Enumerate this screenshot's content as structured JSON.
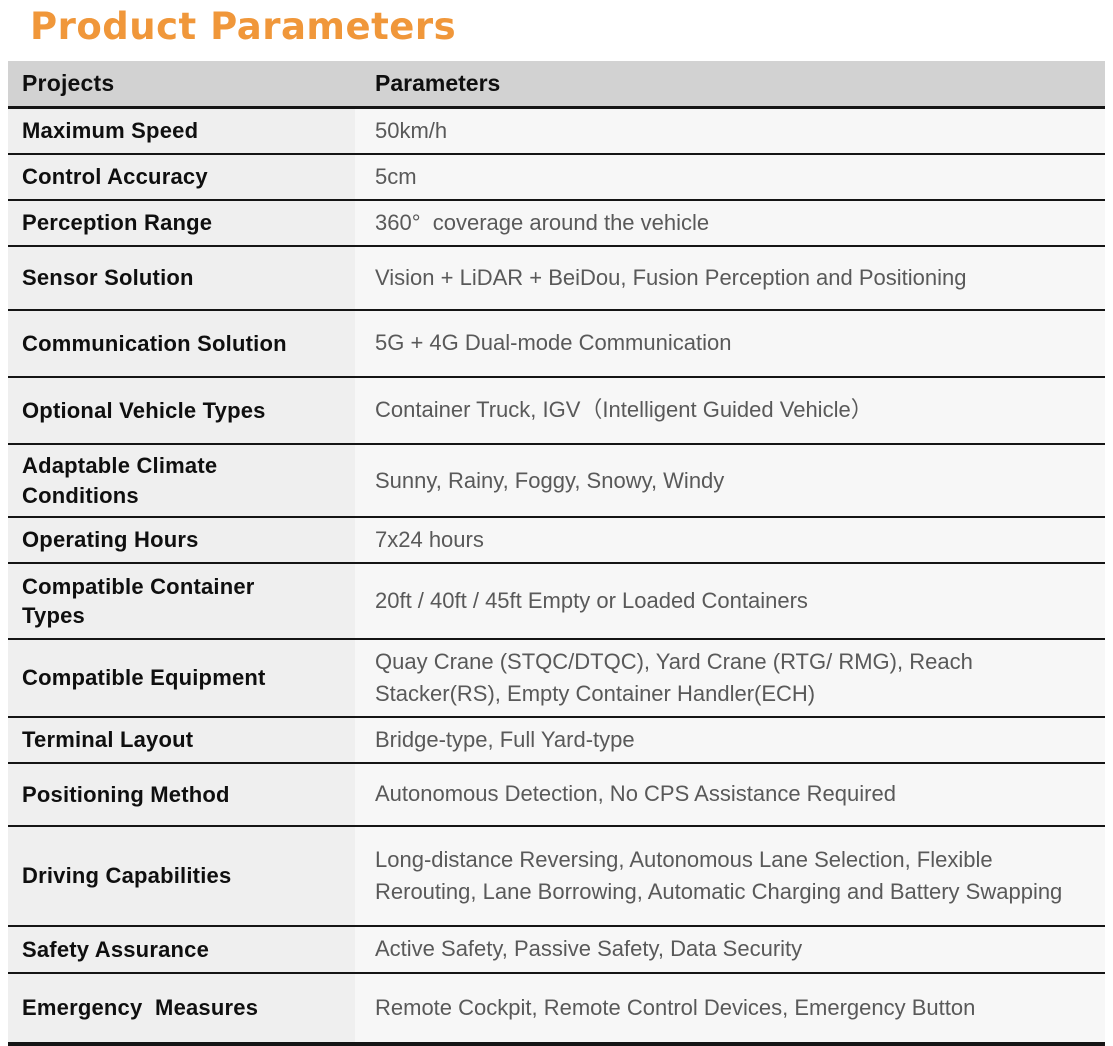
{
  "title": "Product Parameters",
  "table": {
    "headers": {
      "col1": "Projects",
      "col2": "Parameters"
    },
    "rows": [
      {
        "label": "Maximum Speed",
        "value": "50km/h"
      },
      {
        "label": "Control Accuracy",
        "value": "5cm"
      },
      {
        "label": "Perception Range",
        "value": "360°  coverage around the vehicle"
      },
      {
        "label": "Sensor Solution",
        "value": "Vision + LiDAR + BeiDou, Fusion Perception and Positioning"
      },
      {
        "label": "Communication Solution",
        "value": "5G + 4G Dual-mode Communication"
      },
      {
        "label": "Optional Vehicle Types",
        "value": "Container Truck, IGV（Intelligent Guided Vehicle）"
      },
      {
        "label": "Adaptable Climate Conditions",
        "value": "Sunny, Rainy, Foggy, Snowy, Windy"
      },
      {
        "label": "Operating Hours",
        "value": "7x24 hours"
      },
      {
        "label": "Compatible Container Types",
        "value": "20ft / 40ft / 45ft Empty or Loaded Containers"
      },
      {
        "label": "Compatible Equipment",
        "value": "Quay Crane (STQC/DTQC), Yard Crane (RTG/ RMG), Reach Stacker(RS), Empty Container Handler(ECH)"
      },
      {
        "label": "Terminal Layout",
        "value": "Bridge-type, Full Yard-type"
      },
      {
        "label": "Positioning Method",
        "value": "Autonomous Detection, No CPS Assistance Required"
      },
      {
        "label": "Driving Capabilities",
        "value": "Long-distance Reversing, Autonomous Lane Selection, Flexible Rerouting, Lane Borrowing, Automatic Charging and Battery Swapping"
      },
      {
        "label": "Safety Assurance",
        "value": "Active Safety, Passive Safety, Data Security"
      },
      {
        "label": "Emergency  Measures",
        "value": "Remote Cockpit, Remote Control Devices, Emergency Button"
      }
    ]
  },
  "colors": {
    "title": "#f0973a",
    "header_bg": "#d2d2d2",
    "label_col_bg": "#efefef",
    "value_col_bg": "#f7f7f7",
    "separator_line": "#151515",
    "label_text": "#0f0f0f",
    "value_text": "#595959"
  }
}
